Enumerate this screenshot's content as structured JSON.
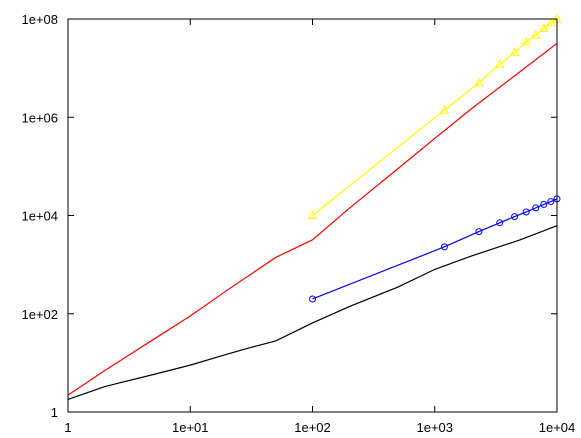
{
  "chart_data": {
    "type": "line",
    "title": "",
    "xlabel": "",
    "ylabel": "",
    "xscale": "log",
    "yscale": "log",
    "xlim": [
      1,
      10000
    ],
    "ylim": [
      1,
      100000000
    ],
    "grid": false,
    "legend": "none",
    "x_ticks": [
      {
        "value": 1,
        "label": "1"
      },
      {
        "value": 10,
        "label": "1e+01"
      },
      {
        "value": 100,
        "label": "1e+02"
      },
      {
        "value": 1000,
        "label": "1e+03"
      },
      {
        "value": 10000,
        "label": "1e+04"
      }
    ],
    "y_ticks": [
      {
        "value": 1,
        "label": "1"
      },
      {
        "value": 100,
        "label": "1e+02"
      },
      {
        "value": 10000,
        "label": "1e+04"
      },
      {
        "value": 1000000,
        "label": "1e+06"
      },
      {
        "value": 100000000,
        "label": "1e+08"
      }
    ],
    "series": [
      {
        "color": "#ff0000",
        "marker": "none",
        "x": [
          1,
          2,
          5,
          10,
          20,
          50,
          100,
          200,
          500,
          1000,
          2000,
          5000,
          10000
        ],
        "y": [
          2.2,
          7,
          30,
          90,
          300,
          1400,
          3200,
          14000,
          90000,
          370000,
          1500000,
          8500000,
          32000000
        ]
      },
      {
        "color": "#000000",
        "marker": "none",
        "x": [
          1,
          2,
          5,
          10,
          20,
          30,
          50,
          100,
          200,
          500,
          1000,
          2000,
          5000,
          10000
        ],
        "y": [
          1.8,
          3.3,
          5.8,
          9,
          15,
          20,
          28,
          65,
          140,
          350,
          800,
          1500,
          3200,
          6200
        ]
      },
      {
        "color": "#ffff00",
        "marker": "triangle",
        "x": [
          100,
          1200,
          2300,
          3400,
          4500,
          5600,
          6700,
          7800,
          8900,
          10000
        ],
        "y": [
          10000,
          1400000,
          5000000,
          12000000,
          21000000,
          34000000,
          47000000,
          64000000,
          84000000,
          100000000
        ]
      },
      {
        "color": "#0000ff",
        "marker": "circle",
        "x": [
          100,
          1200,
          2300,
          3400,
          4500,
          5600,
          6700,
          7800,
          8900,
          10000
        ],
        "y": [
          200,
          2300,
          4700,
          7100,
          9500,
          11800,
          14300,
          16800,
          19200,
          21800
        ]
      }
    ]
  }
}
